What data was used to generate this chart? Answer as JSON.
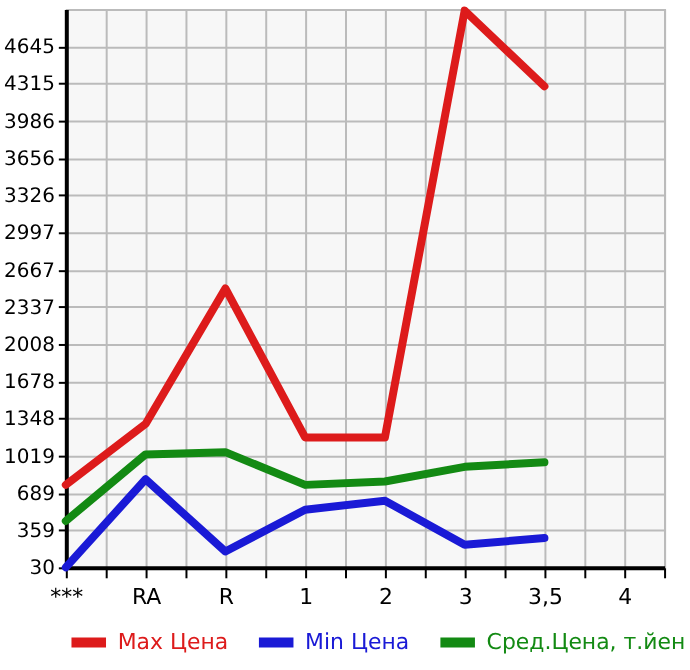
{
  "chart_data": {
    "type": "line",
    "categories": [
      "***",
      "RA",
      "R",
      "1",
      "2",
      "3",
      "3,5",
      "4"
    ],
    "series": [
      {
        "name": "Max Цена",
        "color": "#dd1b1b",
        "values": [
          760,
          1300,
          2500,
          1180,
          1180,
          4960,
          4290,
          null
        ]
      },
      {
        "name": "Min Цена",
        "color": "#1a1ad6",
        "values": [
          30,
          810,
          170,
          540,
          620,
          230,
          290,
          null
        ]
      },
      {
        "name": "Сред.Цена, т.йен",
        "color": "#138a13",
        "values": [
          440,
          1030,
          1050,
          760,
          790,
          920,
          960,
          null
        ]
      }
    ],
    "ylim": [
      30,
      4975
    ],
    "yticks": [
      30,
      359,
      689,
      1019,
      1348,
      1678,
      2008,
      2337,
      2667,
      2997,
      3326,
      3656,
      3986,
      4315,
      4645
    ],
    "grid": true,
    "legend": "bottom",
    "marker": "none",
    "line_style": "solid"
  }
}
